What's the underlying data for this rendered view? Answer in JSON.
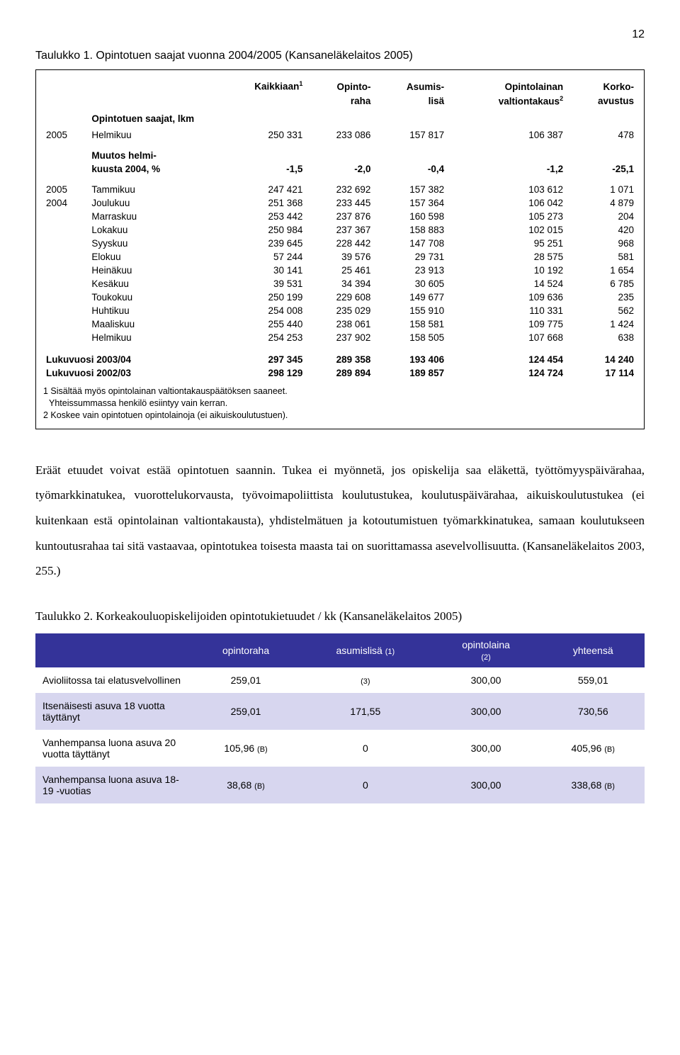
{
  "page_number": "12",
  "caption1": "Taulukko 1. Opintotuen saajat vuonna 2004/2005 (Kansaneläkelaitos 2005)",
  "image_table": {
    "headers": {
      "col1a": "Kaikkiaan",
      "col1sup": "1",
      "col2a": "Opinto-",
      "col2b": "raha",
      "col3a": "Asumis-",
      "col3b": "lisä",
      "col4a": "Opintolainan",
      "col4b": "valtiontakaus",
      "col4sup": "2",
      "col5a": "Korko-",
      "col5b": "avustus"
    },
    "subheader": "Opintotuen saajat, lkm",
    "rows": [
      {
        "y": "2005",
        "m": "Helmikuu",
        "c1": "250 331",
        "c2": "233 086",
        "c3": "157 817",
        "c4": "106 387",
        "c5": "478",
        "bold": false
      },
      {
        "y": "",
        "m": "Muutos helmi-",
        "c1": "",
        "c2": "",
        "c3": "",
        "c4": "",
        "c5": "",
        "bold": true,
        "cont": true
      },
      {
        "y": "",
        "m": "kuusta 2004, %",
        "c1": "-1,5",
        "c2": "-2,0",
        "c3": "-0,4",
        "c4": "-1,2",
        "c5": "-25,1",
        "bold": true
      },
      {
        "y": "2005",
        "m": "Tammikuu",
        "c1": "247 421",
        "c2": "232 692",
        "c3": "157 382",
        "c4": "103 612",
        "c5": "1 071"
      },
      {
        "y": "2004",
        "m": "Joulukuu",
        "c1": "251 368",
        "c2": "233 445",
        "c3": "157 364",
        "c4": "106 042",
        "c5": "4 879"
      },
      {
        "y": "",
        "m": "Marraskuu",
        "c1": "253 442",
        "c2": "237 876",
        "c3": "160 598",
        "c4": "105 273",
        "c5": "204"
      },
      {
        "y": "",
        "m": "Lokakuu",
        "c1": "250 984",
        "c2": "237 367",
        "c3": "158 883",
        "c4": "102 015",
        "c5": "420"
      },
      {
        "y": "",
        "m": "Syyskuu",
        "c1": "239 645",
        "c2": "228 442",
        "c3": "147 708",
        "c4": "95 251",
        "c5": "968"
      },
      {
        "y": "",
        "m": "Elokuu",
        "c1": "57 244",
        "c2": "39 576",
        "c3": "29 731",
        "c4": "28 575",
        "c5": "581"
      },
      {
        "y": "",
        "m": "Heinäkuu",
        "c1": "30 141",
        "c2": "25 461",
        "c3": "23 913",
        "c4": "10 192",
        "c5": "1 654"
      },
      {
        "y": "",
        "m": "Kesäkuu",
        "c1": "39 531",
        "c2": "34 394",
        "c3": "30 605",
        "c4": "14 524",
        "c5": "6 785"
      },
      {
        "y": "",
        "m": "Toukokuu",
        "c1": "250 199",
        "c2": "229 608",
        "c3": "149 677",
        "c4": "109 636",
        "c5": "235"
      },
      {
        "y": "",
        "m": "Huhtikuu",
        "c1": "254 008",
        "c2": "235 029",
        "c3": "155 910",
        "c4": "110 331",
        "c5": "562"
      },
      {
        "y": "",
        "m": "Maaliskuu",
        "c1": "255 440",
        "c2": "238 061",
        "c3": "158 581",
        "c4": "109 775",
        "c5": "1 424"
      },
      {
        "y": "",
        "m": "Helmikuu",
        "c1": "254 253",
        "c2": "237 902",
        "c3": "158 505",
        "c4": "107 668",
        "c5": "638"
      }
    ],
    "year_rows": [
      {
        "label": "Lukuvuosi 2003/04",
        "c1": "297 345",
        "c2": "289 358",
        "c3": "193 406",
        "c4": "124 454",
        "c5": "14 240"
      },
      {
        "label": "Lukuvuosi 2002/03",
        "c1": "298 129",
        "c2": "289 894",
        "c3": "189 857",
        "c4": "124 724",
        "c5": "17 114"
      }
    ],
    "footnotes": {
      "f1sup": "1",
      "f1": " Sisältää myös opintolainan valtiontakauspäätöksen saaneet.",
      "f1b": "Yhteissummassa henkilö esiintyy vain kerran.",
      "f2sup": "2",
      "f2": " Koskee vain opintotuen opintolainoja (ei aikuiskoulutustuen)."
    }
  },
  "bodytext": "Eräät etuudet voivat estää opintotuen saannin. Tukea ei myönnetä, jos opiskelija saa eläkettä, työttömyyspäivärahaa, työmarkkinatukea, vuorottelukorvausta, työvoimapoliittista koulutustukea, koulutuspäivärahaa, aikuiskoulutustukea (ei kuitenkaan estä opintolainan valtiontakausta), yhdistelmätuen ja kotoutumistuen työmarkkinatukea, samaan koulutukseen kuntoutusrahaa tai sitä vastaavaa, opintotukea toisesta maasta tai on suorittamassa asevelvollisuutta. (Kansaneläkelaitos 2003, 255.)",
  "caption2": "Taulukko 2. Korkeakouluopiskelijoiden opintotukietuudet / kk (Kansaneläkelaitos 2005)",
  "colored_table": {
    "headers": {
      "h1": "opintoraha",
      "h2": "asumislisä ",
      "h2s": "(1)",
      "h3a": "opintolaina",
      "h3b": "(2)",
      "h4": "yhteensä"
    },
    "rows": [
      {
        "label": "Avioliitossa tai elatusvelvollinen",
        "c1": "259,01",
        "c2": "(3)",
        "c3": "300,00",
        "c4": "559,01",
        "shade": "light"
      },
      {
        "label": "Itsenäisesti asuva 18 vuotta täyttänyt",
        "c1": "259,01",
        "c2": "171,55",
        "c3": "300,00",
        "c4": "730,56",
        "shade": "dark"
      },
      {
        "label": "Vanhempansa luona asuva 20 vuotta täyttänyt",
        "c1": "105,96  (B)",
        "c2": "0",
        "c3": "300,00",
        "c4": "405,96  (B)",
        "shade": "light"
      },
      {
        "label": "Vanhempansa luona asuva 18-19 -vuotias",
        "c1": "38,68  (B)",
        "c2": "0",
        "c3": "300,00",
        "c4": "338,68  (B)",
        "shade": "dark"
      }
    ]
  }
}
